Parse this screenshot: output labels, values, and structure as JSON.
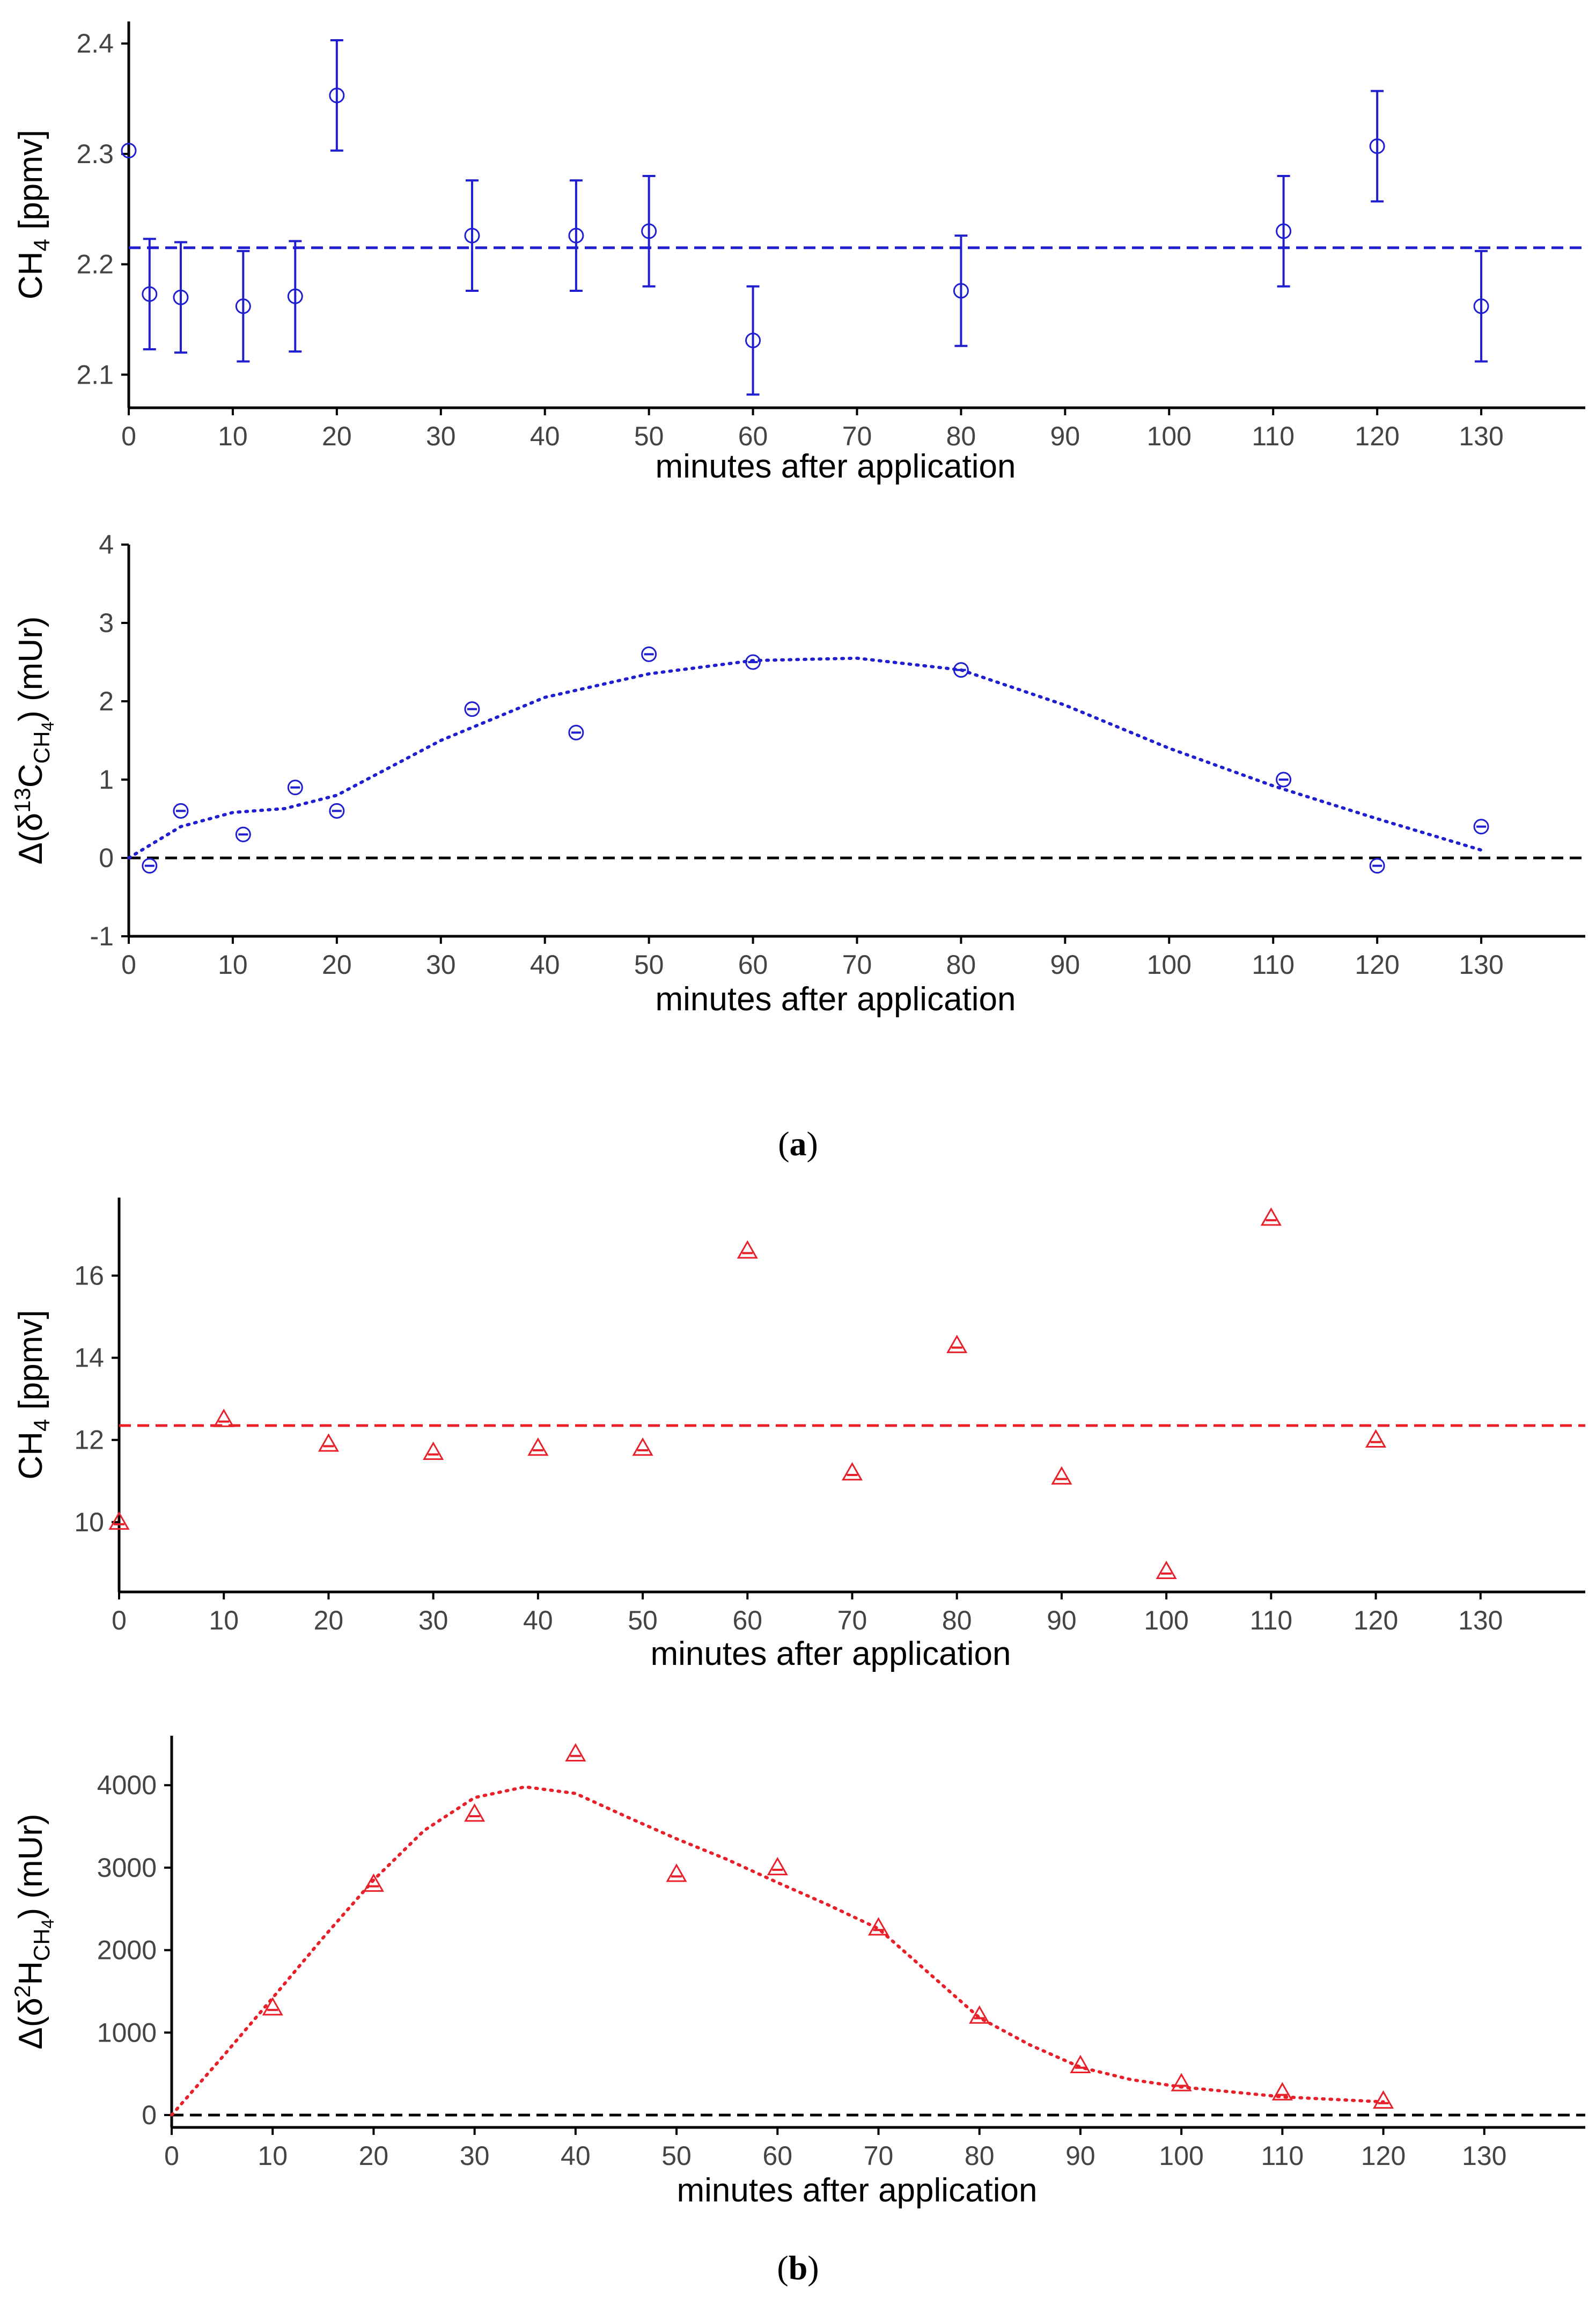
{
  "captions": {
    "a": "a",
    "b": "b"
  },
  "colors": {
    "blue": "#1f1fd0",
    "red": "#e8202a",
    "zero": "#000000",
    "axis": "#000000",
    "tick": "#444444"
  },
  "chart_data": [
    {
      "id": "a1",
      "type": "scatter",
      "color": "blue",
      "marker": "circle",
      "title": "",
      "xlabel": "minutes after application",
      "ylabel_main": "CH",
      "ylabel_sub": "4",
      "ylabel_rest": " [ppmv]",
      "xlim": [
        0,
        140
      ],
      "ylim": [
        2.07,
        2.42
      ],
      "xticks": [
        0,
        10,
        20,
        30,
        40,
        50,
        60,
        70,
        80,
        90,
        100,
        110,
        120,
        130
      ],
      "yticks": [
        2.1,
        2.2,
        2.3,
        2.4
      ],
      "ytick_labels": [
        "2.1",
        "2.2",
        "2.3",
        "2.4"
      ],
      "mean_line": 2.215,
      "points": [
        {
          "x": 0,
          "y": 2.303,
          "err": 0
        },
        {
          "x": 2,
          "y": 2.173,
          "err": 0.05
        },
        {
          "x": 5,
          "y": 2.17,
          "err": 0.05
        },
        {
          "x": 11,
          "y": 2.162,
          "err": 0.05
        },
        {
          "x": 16,
          "y": 2.171,
          "err": 0.05
        },
        {
          "x": 20,
          "y": 2.353,
          "err": 0.05
        },
        {
          "x": 33,
          "y": 2.226,
          "err": 0.05
        },
        {
          "x": 43,
          "y": 2.226,
          "err": 0.05
        },
        {
          "x": 50,
          "y": 2.23,
          "err": 0.05
        },
        {
          "x": 60,
          "y": 2.131,
          "err": 0.049
        },
        {
          "x": 80,
          "y": 2.176,
          "err": 0.05
        },
        {
          "x": 111,
          "y": 2.23,
          "err": 0.05
        },
        {
          "x": 120,
          "y": 2.307,
          "err": 0.05
        },
        {
          "x": 130,
          "y": 2.162,
          "err": 0.05
        }
      ]
    },
    {
      "id": "a2",
      "type": "scatter",
      "color": "blue",
      "marker": "circle-bar",
      "title": "",
      "xlabel": "minutes after application",
      "ylabel_pre": "Δ(δ",
      "ylabel_sup": "13",
      "ylabel_mid": "C",
      "ylabel_sub": "CH",
      "ylabel_sub2": "4",
      "ylabel_post": ") (mUr)",
      "xlim": [
        0,
        140
      ],
      "ylim": [
        -1,
        4
      ],
      "xticks": [
        0,
        10,
        20,
        30,
        40,
        50,
        60,
        70,
        80,
        90,
        100,
        110,
        120,
        130
      ],
      "yticks": [
        -1,
        0,
        1,
        2,
        3,
        4
      ],
      "ytick_labels": [
        "-1",
        "0",
        "1",
        "2",
        "3",
        "4"
      ],
      "zero_line": 0,
      "points": [
        {
          "x": 2,
          "y": -0.1
        },
        {
          "x": 5,
          "y": 0.6
        },
        {
          "x": 11,
          "y": 0.3
        },
        {
          "x": 16,
          "y": 0.9
        },
        {
          "x": 20,
          "y": 0.6
        },
        {
          "x": 33,
          "y": 1.9
        },
        {
          "x": 43,
          "y": 1.6
        },
        {
          "x": 50,
          "y": 2.6
        },
        {
          "x": 60,
          "y": 2.5
        },
        {
          "x": 80,
          "y": 2.4
        },
        {
          "x": 111,
          "y": 1.0
        },
        {
          "x": 120,
          "y": -0.1
        },
        {
          "x": 130,
          "y": 0.4
        }
      ],
      "fit": {
        "x": [
          0,
          5,
          10,
          15,
          20,
          25,
          30,
          40,
          50,
          60,
          70,
          80,
          90,
          100,
          110,
          120,
          130
        ],
        "y": [
          0,
          0.4,
          0.58,
          0.63,
          0.8,
          1.15,
          1.5,
          2.05,
          2.35,
          2.52,
          2.55,
          2.4,
          1.95,
          1.4,
          0.92,
          0.5,
          0.1
        ]
      }
    },
    {
      "id": "b1",
      "type": "scatter",
      "color": "red",
      "marker": "triangle",
      "title": "",
      "xlabel": "minutes after application",
      "ylabel_main": "CH",
      "ylabel_sub": "4",
      "ylabel_rest": " [ppmv]",
      "xlim": [
        0,
        140
      ],
      "ylim": [
        8.3,
        17.9
      ],
      "xticks": [
        0,
        10,
        20,
        30,
        40,
        50,
        60,
        70,
        80,
        90,
        100,
        110,
        120,
        130
      ],
      "yticks": [
        10,
        12,
        14,
        16
      ],
      "ytick_labels": [
        "10",
        "12",
        "14",
        "16"
      ],
      "mean_line": 12.35,
      "points": [
        {
          "x": 0,
          "y": 10.0
        },
        {
          "x": 10,
          "y": 12.5
        },
        {
          "x": 20,
          "y": 11.9
        },
        {
          "x": 30,
          "y": 11.7
        },
        {
          "x": 40,
          "y": 11.8
        },
        {
          "x": 50,
          "y": 11.8
        },
        {
          "x": 60,
          "y": 16.6
        },
        {
          "x": 70,
          "y": 11.2
        },
        {
          "x": 80,
          "y": 14.3
        },
        {
          "x": 90,
          "y": 11.1
        },
        {
          "x": 100,
          "y": 8.8
        },
        {
          "x": 110,
          "y": 17.4
        },
        {
          "x": 120,
          "y": 12.0
        }
      ]
    },
    {
      "id": "b2",
      "type": "scatter",
      "color": "red",
      "marker": "triangle",
      "title": "",
      "xlabel": "minutes after application",
      "ylabel_pre": "Δ(δ",
      "ylabel_sup": "2",
      "ylabel_mid": "H",
      "ylabel_sub": "CH",
      "ylabel_sub2": "4",
      "ylabel_post": ") (mUr)",
      "xlim": [
        0,
        140
      ],
      "ylim": [
        -150,
        4600
      ],
      "xticks": [
        0,
        10,
        20,
        30,
        40,
        50,
        60,
        70,
        80,
        90,
        100,
        110,
        120,
        130
      ],
      "yticks": [
        0,
        1000,
        2000,
        3000,
        4000
      ],
      "ytick_labels": [
        "0",
        "1000",
        "2000",
        "3000",
        "4000"
      ],
      "zero_line": 0,
      "points": [
        {
          "x": 10,
          "y": 1300
        },
        {
          "x": 20,
          "y": 2800
        },
        {
          "x": 30,
          "y": 3650
        },
        {
          "x": 40,
          "y": 4380
        },
        {
          "x": 50,
          "y": 2920
        },
        {
          "x": 60,
          "y": 3000
        },
        {
          "x": 70,
          "y": 2270
        },
        {
          "x": 80,
          "y": 1200
        },
        {
          "x": 90,
          "y": 600
        },
        {
          "x": 100,
          "y": 380
        },
        {
          "x": 110,
          "y": 270
        },
        {
          "x": 120,
          "y": 170
        }
      ],
      "fit": {
        "x": [
          0,
          5,
          10,
          15,
          20,
          25,
          30,
          35,
          40,
          45,
          50,
          55,
          60,
          65,
          70,
          75,
          80,
          85,
          90,
          95,
          100,
          110,
          120
        ],
        "y": [
          0,
          700,
          1420,
          2150,
          2850,
          3450,
          3850,
          3980,
          3900,
          3620,
          3350,
          3100,
          2820,
          2550,
          2260,
          1720,
          1180,
          850,
          580,
          430,
          340,
          220,
          160
        ]
      }
    }
  ]
}
